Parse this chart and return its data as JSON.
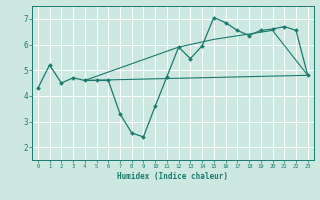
{
  "xlabel": "Humidex (Indice chaleur)",
  "bg_color": "#cce8e0",
  "grid_color": "#ffffff",
  "line_color": "#1a7a6e",
  "xlim": [
    -0.5,
    23.5
  ],
  "ylim": [
    1.5,
    7.5
  ],
  "xticks": [
    0,
    1,
    2,
    3,
    4,
    5,
    6,
    7,
    8,
    9,
    10,
    11,
    12,
    13,
    14,
    15,
    16,
    17,
    18,
    19,
    20,
    21,
    22,
    23
  ],
  "yticks": [
    2,
    3,
    4,
    5,
    6,
    7
  ],
  "series_main": {
    "x": [
      0,
      1,
      2,
      3,
      4,
      5,
      6,
      7,
      8,
      9,
      10,
      11,
      12,
      13,
      14,
      15,
      16,
      17,
      18,
      19,
      20,
      21,
      22,
      23
    ],
    "y": [
      4.3,
      5.2,
      4.5,
      4.7,
      4.6,
      4.6,
      4.6,
      3.3,
      2.55,
      2.4,
      3.6,
      4.75,
      5.9,
      5.45,
      5.95,
      7.05,
      6.85,
      6.55,
      6.35,
      6.55,
      6.6,
      6.7,
      6.55,
      4.8
    ]
  },
  "series_flat": {
    "x": [
      4,
      23
    ],
    "y": [
      4.6,
      4.8
    ]
  },
  "series_trend": {
    "x": [
      4,
      12,
      15,
      20,
      23
    ],
    "y": [
      4.6,
      5.9,
      6.2,
      6.55,
      4.8
    ]
  }
}
